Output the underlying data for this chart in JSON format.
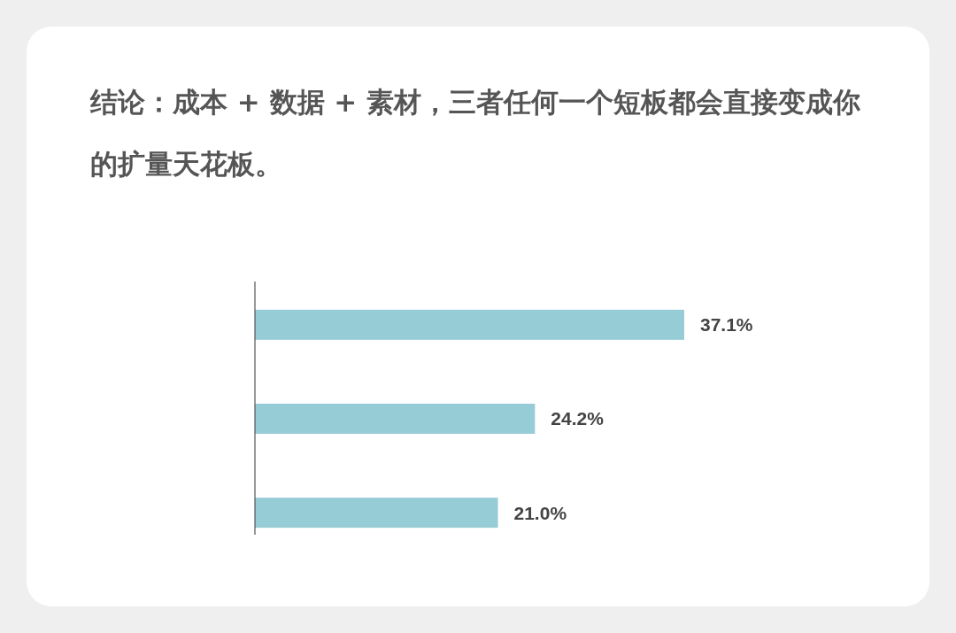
{
  "chart_data": {
    "type": "bar",
    "orientation": "horizontal",
    "title": "结论：成本 + 数据 + 素材，三者任何一个短板都会直接变成你的扩量天花板。",
    "categories": [
      null,
      null,
      null
    ],
    "values": [
      37.1,
      24.2,
      21.0
    ],
    "color": "#96ccd6",
    "value_labels": [
      "37.1%",
      "24.2%",
      "21.0%"
    ]
  }
}
